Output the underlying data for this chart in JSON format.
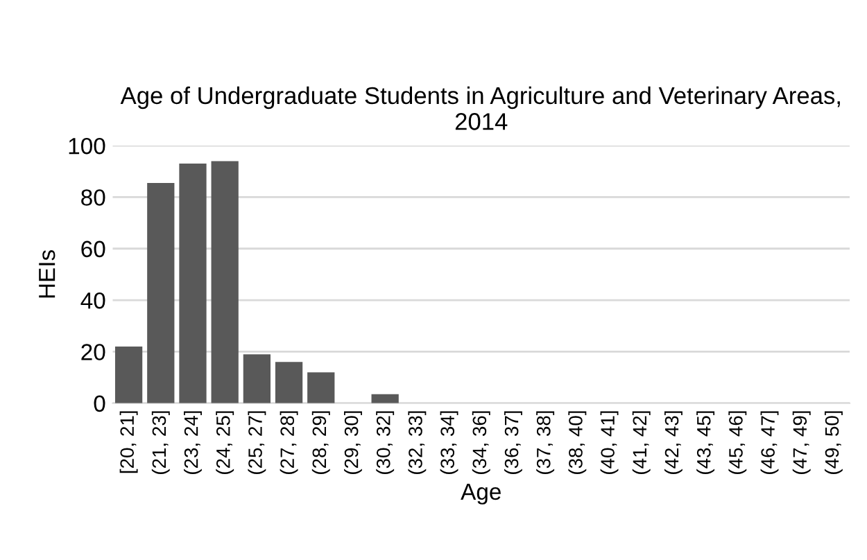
{
  "chart_data": {
    "type": "bar",
    "title": "Age of Undergraduate Students in Agriculture and Veterinary Areas, 2014",
    "xlabel": "Age",
    "ylabel": "HEIs",
    "categories": [
      "[20, 21]",
      "(21, 23]",
      "(23, 24]",
      "(24, 25]",
      "(25, 27]",
      "(27, 28]",
      "(28, 29]",
      "(29, 30]",
      "(30, 32]",
      "(32, 33]",
      "(33, 34]",
      "(34, 36]",
      "(36, 37]",
      "(37, 38]",
      "(38, 40]",
      "(40, 41]",
      "(41, 42]",
      "(42, 43]",
      "(43, 45]",
      "(45, 46]",
      "(46, 47]",
      "(47, 49]",
      "(49, 50]"
    ],
    "values": [
      22,
      85.5,
      93,
      94,
      19,
      16,
      12,
      0,
      3.5,
      0,
      0,
      0,
      0,
      0,
      0,
      0,
      0,
      0,
      0,
      0,
      0,
      0,
      0
    ],
    "color": "#595959",
    "ylim": [
      0,
      100
    ],
    "yticks": [
      0,
      20,
      40,
      60,
      80,
      100
    ],
    "grid": "y"
  }
}
